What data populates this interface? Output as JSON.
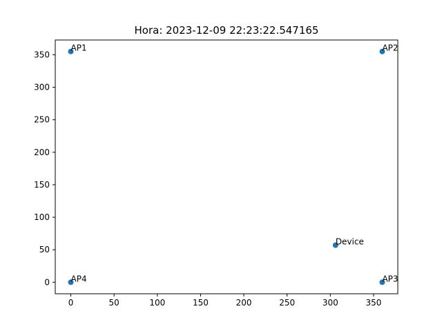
{
  "chart_data": {
    "type": "scatter",
    "title": "Hora: 2023-12-09 22:23:22.547165",
    "xlabel": "",
    "ylabel": "",
    "xlim": [
      -18,
      378
    ],
    "ylim": [
      -17.75,
      372.75
    ],
    "xticks": [
      0,
      50,
      100,
      150,
      200,
      250,
      300,
      350
    ],
    "yticks": [
      0,
      50,
      100,
      150,
      200,
      250,
      300,
      350
    ],
    "grid": false,
    "marker_color": "#1f77b4",
    "points": [
      {
        "label": "AP1",
        "x": 0,
        "y": 355
      },
      {
        "label": "AP2",
        "x": 360,
        "y": 355
      },
      {
        "label": "AP3",
        "x": 360,
        "y": 0
      },
      {
        "label": "AP4",
        "x": 0,
        "y": 0
      },
      {
        "label": "Device",
        "x": 306,
        "y": 57
      }
    ]
  }
}
